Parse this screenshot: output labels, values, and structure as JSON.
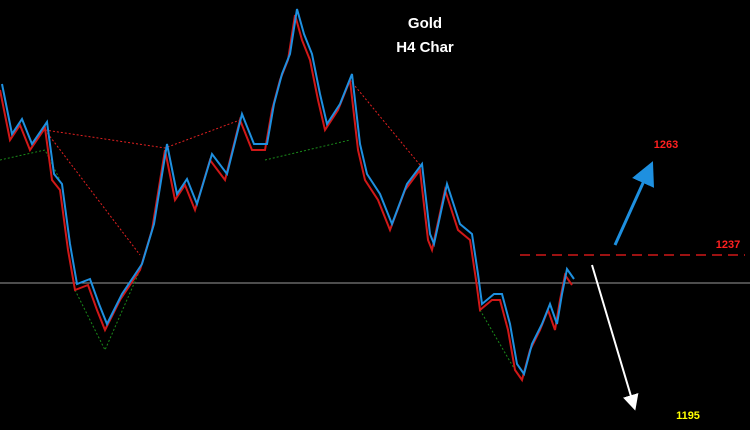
{
  "header": {
    "title": "Gold",
    "subtitle": "H4 Char"
  },
  "levels": [
    {
      "label": "1263"
    },
    {
      "label": "1237"
    },
    {
      "label": "1195"
    }
  ]
}
